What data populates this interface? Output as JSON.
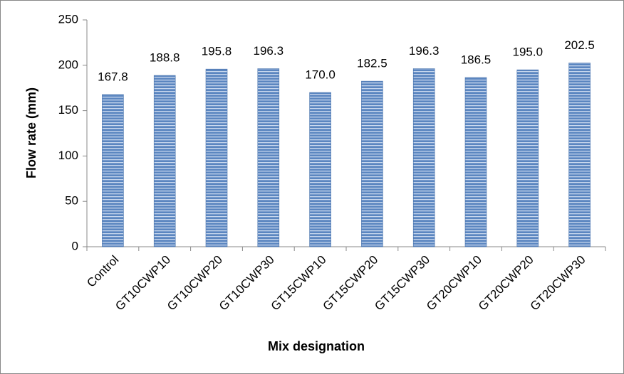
{
  "chart_data": {
    "type": "bar",
    "x_label": "Mix designation",
    "y_label": "Flow rate (mm)",
    "categories": [
      "Control",
      "GT10CWP10",
      "GT10CWP20",
      "GT10CWP30",
      "GT15CWP10",
      "GT15CWP20",
      "GT15CWP30",
      "GT20CWP10",
      "GT20CWP20",
      "GT20CWP30"
    ],
    "values": [
      167.8,
      188.8,
      195.8,
      196.3,
      170,
      182.5,
      196.3,
      186.5,
      195,
      202.5
    ],
    "value_labels": [
      "167.8",
      "188.8",
      "195.8",
      "196.3",
      "170.0",
      "182.5",
      "196.3",
      "186.5",
      "195.0",
      "202.5"
    ],
    "color": "#5b86c0",
    "ylim": [
      0,
      250
    ],
    "yticks": [
      0,
      50,
      100,
      150,
      200,
      250
    ],
    "grid": false
  }
}
